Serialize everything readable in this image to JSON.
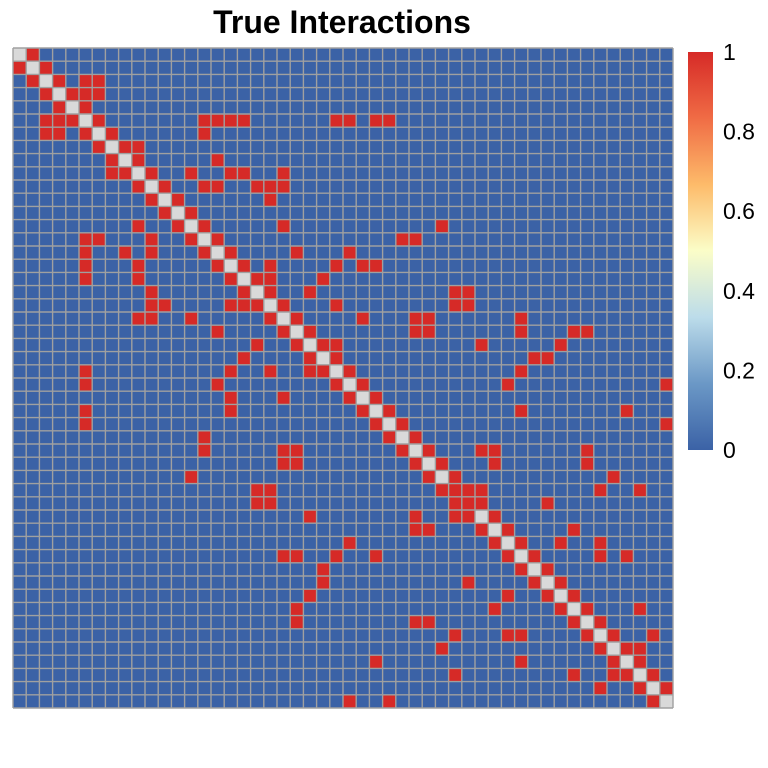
{
  "chart_data": {
    "type": "heatmap",
    "title": "True Interactions",
    "n": 50,
    "diagonal_color": "#d9d9d9",
    "grid_color": "#a0a0a0",
    "cells": [
      [
        0,
        1
      ],
      [
        1,
        2
      ],
      [
        2,
        3
      ],
      [
        3,
        4
      ],
      [
        4,
        5
      ],
      [
        5,
        6
      ],
      [
        6,
        7
      ],
      [
        7,
        8
      ],
      [
        8,
        9
      ],
      [
        9,
        10
      ],
      [
        10,
        11
      ],
      [
        11,
        12
      ],
      [
        12,
        13
      ],
      [
        13,
        14
      ],
      [
        14,
        15
      ],
      [
        15,
        16
      ],
      [
        16,
        17
      ],
      [
        17,
        18
      ],
      [
        18,
        19
      ],
      [
        19,
        20
      ],
      [
        20,
        21
      ],
      [
        21,
        22
      ],
      [
        22,
        23
      ],
      [
        23,
        24
      ],
      [
        24,
        25
      ],
      [
        25,
        26
      ],
      [
        26,
        27
      ],
      [
        27,
        28
      ],
      [
        28,
        29
      ],
      [
        29,
        30
      ],
      [
        30,
        31
      ],
      [
        31,
        32
      ],
      [
        32,
        33
      ],
      [
        33,
        34
      ],
      [
        34,
        35
      ],
      [
        35,
        36
      ],
      [
        36,
        37
      ],
      [
        37,
        38
      ],
      [
        38,
        39
      ],
      [
        39,
        40
      ],
      [
        40,
        41
      ],
      [
        41,
        42
      ],
      [
        42,
        43
      ],
      [
        43,
        44
      ],
      [
        44,
        45
      ],
      [
        45,
        46
      ],
      [
        46,
        47
      ],
      [
        47,
        48
      ],
      [
        48,
        49
      ],
      [
        2,
        5
      ],
      [
        2,
        6
      ],
      [
        3,
        5
      ],
      [
        3,
        6
      ],
      [
        5,
        14
      ],
      [
        5,
        15
      ],
      [
        5,
        24
      ],
      [
        5,
        25
      ],
      [
        6,
        14
      ],
      [
        7,
        9
      ],
      [
        9,
        13
      ],
      [
        10,
        14
      ],
      [
        10,
        15
      ],
      [
        10,
        18
      ],
      [
        10,
        19
      ],
      [
        11,
        19
      ],
      [
        13,
        20
      ],
      [
        14,
        29
      ],
      [
        15,
        8
      ],
      [
        16,
        5
      ],
      [
        16,
        9
      ],
      [
        16,
        19
      ],
      [
        16,
        26
      ],
      [
        16,
        27
      ],
      [
        17,
        5
      ],
      [
        17,
        9
      ],
      [
        17,
        19
      ],
      [
        17,
        23
      ],
      [
        18,
        22
      ],
      [
        20,
        9
      ],
      [
        20,
        10
      ],
      [
        20,
        30
      ],
      [
        20,
        31
      ],
      [
        21,
        15
      ],
      [
        21,
        22
      ],
      [
        21,
        30
      ],
      [
        21,
        31
      ],
      [
        22,
        24
      ],
      [
        22,
        35
      ],
      [
        23,
        39
      ],
      [
        23,
        40
      ],
      [
        24,
        16
      ],
      [
        24,
        19
      ],
      [
        24,
        38
      ],
      [
        25,
        15
      ],
      [
        25,
        37
      ],
      [
        26,
        20
      ],
      [
        27,
        5
      ],
      [
        28,
        5
      ],
      [
        28,
        49
      ],
      [
        29,
        14
      ],
      [
        30,
        14
      ],
      [
        30,
        35
      ],
      [
        30,
        43
      ],
      [
        32,
        13
      ],
      [
        33,
        18
      ],
      [
        33,
        19
      ],
      [
        33,
        33
      ],
      [
        33,
        34
      ],
      [
        34,
        18
      ],
      [
        34,
        19
      ],
      [
        34,
        34
      ],
      [
        34,
        40
      ],
      [
        35,
        30
      ],
      [
        35,
        33
      ],
      [
        36,
        30
      ],
      [
        36,
        31
      ],
      [
        36,
        42
      ],
      [
        37,
        41
      ],
      [
        37,
        44
      ],
      [
        38,
        20
      ],
      [
        38,
        21
      ],
      [
        38,
        27
      ],
      [
        38,
        44
      ],
      [
        38,
        46
      ],
      [
        40,
        23
      ],
      [
        41,
        22
      ],
      [
        42,
        21
      ],
      [
        43,
        21
      ],
      [
        43,
        31
      ],
      [
        44,
        33
      ],
      [
        45,
        32
      ],
      [
        46,
        27
      ],
      [
        46,
        45
      ],
      [
        47,
        33
      ],
      [
        47,
        42
      ],
      [
        47,
        45
      ],
      [
        48,
        44
      ],
      [
        49,
        25
      ]
    ],
    "color_scale": {
      "min": 0,
      "max": 1,
      "low_color": "#3b62a6",
      "high_color": "#d62a27",
      "ticks": [
        "0",
        "0.2",
        "0.4",
        "0.6",
        "0.8",
        "1"
      ],
      "stops": [
        "#3b62a6",
        "#6b98c6",
        "#bcdcea",
        "#fbfdc8",
        "#fdbb6a",
        "#f06c45",
        "#d62a27"
      ]
    }
  }
}
